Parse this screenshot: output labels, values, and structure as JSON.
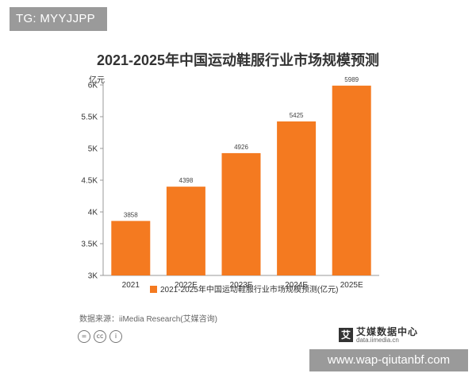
{
  "watermark_top": "TG: MYYJJPP",
  "watermark_bottom": "www.wap-qiutanbf.com",
  "source_text": "数据来源：iiMedia Research(艾媒咨询)",
  "logo": {
    "mark": "艾",
    "name": "艾媒数据中心",
    "url": "data.iimedia.cn"
  },
  "license_icons": [
    "license-equal-icon",
    "cc-icon",
    "info-icon"
  ],
  "license_glyphs": [
    "=",
    "cc",
    "i"
  ],
  "colors": {
    "bar": "#F47A20",
    "axis": "#999999",
    "text": "#333333"
  },
  "chart_data": {
    "type": "bar",
    "title": "2021-2025年中国运动鞋服行业市场规模预测",
    "ylabel": "亿元",
    "xlabel": "",
    "categories": [
      "2021",
      "2022E",
      "2023E",
      "2024E",
      "2025E"
    ],
    "series": [
      {
        "name": "2021-2025年中国运动鞋服行业市场规模预测(亿元)",
        "values": [
          3858,
          4398,
          4926,
          5425,
          5989
        ]
      }
    ],
    "ylim": [
      3000,
      6000
    ],
    "yticks": [
      3000,
      3500,
      4000,
      4500,
      5000,
      5500,
      6000
    ],
    "ytick_labels": [
      "3K",
      "3.5K",
      "4K",
      "4.5K",
      "5K",
      "5.5K",
      "6K"
    ],
    "data_labels": [
      "3858",
      "4398",
      "4926",
      "5425",
      "5989"
    ],
    "grid": false,
    "legend": "bottom-center"
  }
}
